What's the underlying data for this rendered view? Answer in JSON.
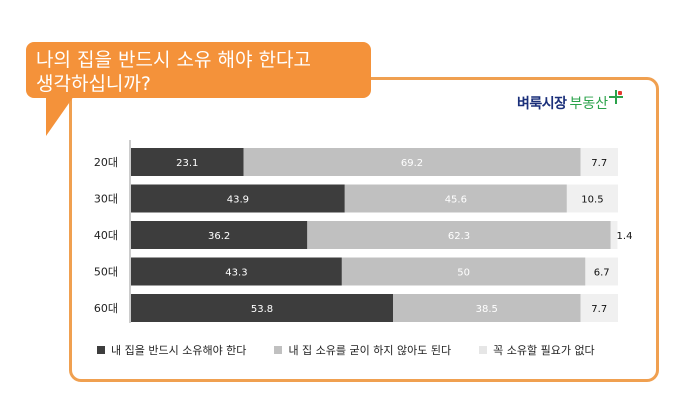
{
  "title": {
    "line1": "나의 집을 반드시 소유 해야 한다고",
    "line2": "생각하십니까?"
  },
  "logo": {
    "main": "벼룩시장",
    "sub": "부동산"
  },
  "chart_data": {
    "type": "bar",
    "orientation": "horizontal",
    "stacked": "percent",
    "categories": [
      "20대",
      "30대",
      "40대",
      "50대",
      "60대"
    ],
    "series": [
      {
        "name": "내 집을 반드시 소유해야 한다",
        "values": [
          23.1,
          43.9,
          36.2,
          43.3,
          53.8
        ],
        "color": "#3d3d3d",
        "label_color": "#ffffff"
      },
      {
        "name": "내 집 소유를 굳이 하지 않아도 된다",
        "values": [
          69.2,
          45.6,
          62.3,
          50,
          38.5
        ],
        "color": "#c0c0c0",
        "label_color": "#ffffff"
      },
      {
        "name": "꼭 소유할 필요가 없다",
        "values": [
          7.7,
          10.5,
          1.4,
          6.7,
          7.7
        ],
        "color": "#f0f0f0",
        "label_color": "#111111"
      }
    ],
    "xlim": [
      0,
      100
    ],
    "legend": "bottom"
  }
}
